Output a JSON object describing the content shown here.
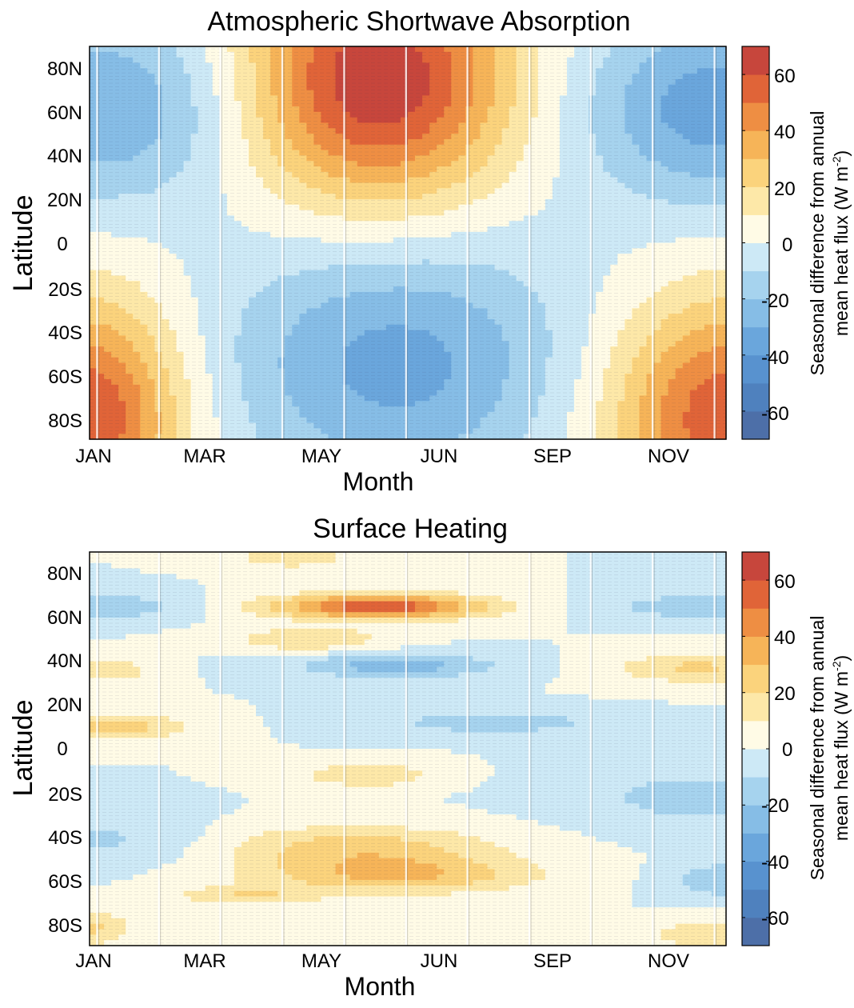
{
  "chart_data": [
    {
      "type": "heatmap",
      "title": "Atmospheric Shortwave Absorption",
      "xlabel": "Month",
      "ylabel": "Latitude",
      "x_tick_labels": [
        "JAN",
        "MAR",
        "MAY",
        "JUN",
        "SEP",
        "NOV"
      ],
      "y_tick_labels": [
        "80N",
        "60N",
        "40N",
        "20N",
        "0",
        "20S",
        "40S",
        "60S",
        "80S"
      ],
      "xlim": [
        1,
        12
      ],
      "ylim": [
        -90,
        90
      ],
      "colorbar": {
        "label_line1": "Seasonal difference from annual",
        "label_line2_prefix": "mean heat flux (W m",
        "label_line2_sup": "-2",
        "label_line2_suffix": ")",
        "ticks": [
          "60",
          "40",
          "20",
          "0",
          "-20",
          "-40",
          "-60"
        ],
        "range": [
          -70,
          70
        ]
      },
      "features": [
        {
          "month": 6.0,
          "lat": 75,
          "amp": 70,
          "sx": 1.6,
          "sy": 40
        },
        {
          "month": 1.0,
          "lat": -80,
          "amp": 60,
          "sx": 1.1,
          "sy": 38
        },
        {
          "month": 12.0,
          "lat": -80,
          "amp": 58,
          "sx": 1.4,
          "sy": 38
        },
        {
          "month": 6.3,
          "lat": -55,
          "amp": -34,
          "sx": 2.0,
          "sy": 40
        },
        {
          "month": 1.3,
          "lat": 62,
          "amp": -30,
          "sx": 1.6,
          "sy": 30
        },
        {
          "month": 11.8,
          "lat": 62,
          "amp": -36,
          "sx": 1.6,
          "sy": 30
        }
      ]
    },
    {
      "type": "heatmap",
      "title": "Surface Heating",
      "xlabel": "Month",
      "ylabel": "Latitude",
      "x_tick_labels": [
        "JAN",
        "MAR",
        "MAY",
        "JUN",
        "SEP",
        "NOV"
      ],
      "y_tick_labels": [
        "80N",
        "60N",
        "40N",
        "20N",
        "0",
        "20S",
        "40S",
        "60S",
        "80S"
      ],
      "xlim": [
        1,
        12
      ],
      "ylim": [
        -90,
        90
      ],
      "colorbar": {
        "label_line1": "Seasonal difference from annual",
        "label_line2_prefix": "mean heat flux (W m",
        "label_line2_sup": "-2",
        "label_line2_suffix": ")",
        "ticks": [
          "60",
          "40",
          "20",
          "0",
          "-20",
          "-40",
          "-60"
        ],
        "range": [
          -70,
          70
        ]
      },
      "features": [
        {
          "month": 6.0,
          "lat": 65,
          "amp": 58,
          "sx": 1.3,
          "sy": 4
        },
        {
          "month": 4.8,
          "lat": 50,
          "amp": 20,
          "sx": 0.9,
          "sy": 4
        },
        {
          "month": 4.5,
          "lat": 88,
          "amp": 18,
          "sx": 0.7,
          "sy": 4
        },
        {
          "month": 1.5,
          "lat": 10,
          "amp": 25,
          "sx": 0.9,
          "sy": 4
        },
        {
          "month": 1.2,
          "lat": 36,
          "amp": 20,
          "sx": 0.6,
          "sy": 4
        },
        {
          "month": 11.5,
          "lat": 37,
          "amp": 22,
          "sx": 1.0,
          "sy": 5
        },
        {
          "month": 5.8,
          "lat": -12,
          "amp": 20,
          "sx": 0.8,
          "sy": 4
        },
        {
          "month": 5.6,
          "lat": -45,
          "amp": 25,
          "sx": 1.7,
          "sy": 7
        },
        {
          "month": 6.3,
          "lat": -58,
          "amp": 30,
          "sx": 1.7,
          "sy": 6
        },
        {
          "month": 3.7,
          "lat": -67,
          "amp": 18,
          "sx": 0.9,
          "sy": 3
        },
        {
          "month": 1.0,
          "lat": -82,
          "amp": 22,
          "sx": 0.5,
          "sy": 6
        },
        {
          "month": 11.8,
          "lat": -85,
          "amp": 20,
          "sx": 0.8,
          "sy": 5
        },
        {
          "month": 1.2,
          "lat": 65,
          "amp": -20,
          "sx": 1.0,
          "sy": 4
        },
        {
          "month": 11.7,
          "lat": 65,
          "amp": -20,
          "sx": 1.2,
          "sy": 4
        },
        {
          "month": 6.3,
          "lat": 38,
          "amp": -26,
          "sx": 1.2,
          "sy": 4
        },
        {
          "month": 8.0,
          "lat": 12,
          "amp": -16,
          "sx": 1.5,
          "sy": 4
        },
        {
          "month": 11.5,
          "lat": -22,
          "amp": -14,
          "sx": 1.5,
          "sy": 10
        },
        {
          "month": 1.3,
          "lat": -42,
          "amp": -12,
          "sx": 1.3,
          "sy": 8
        },
        {
          "month": 12.0,
          "lat": -60,
          "amp": -18,
          "sx": 0.7,
          "sy": 6
        }
      ]
    }
  ]
}
